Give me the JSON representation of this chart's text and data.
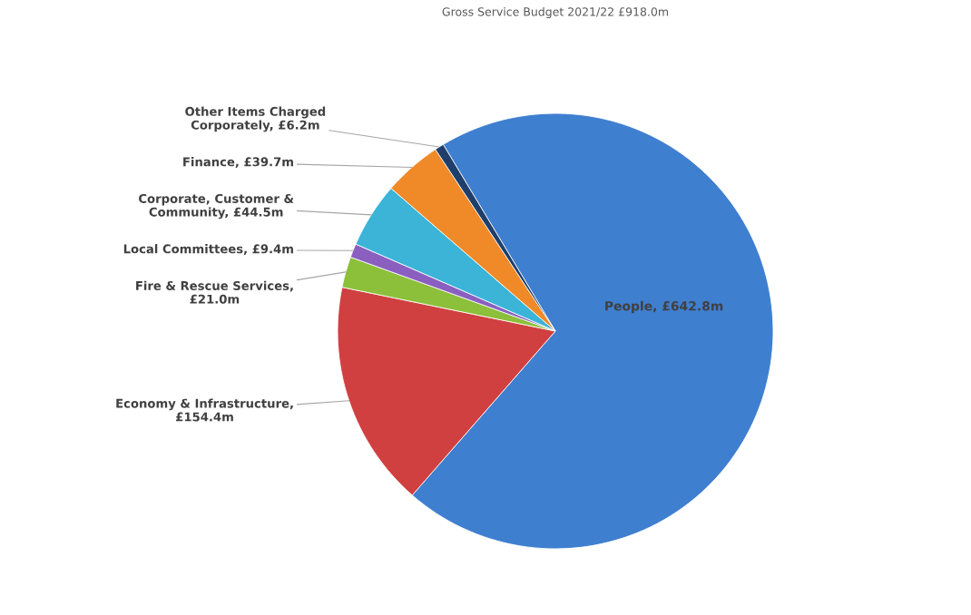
{
  "chart_data": {
    "type": "pie",
    "title": "Gross Service Budget 2021/22 £918.0m",
    "categories": [
      "People",
      "Economy & Infrastructure",
      "Fire & Rescue Services",
      "Local Committees",
      "Corporate, Customer & Community",
      "Finance",
      "Other Items Charged Corporately"
    ],
    "values": [
      642.8,
      154.4,
      21.0,
      9.4,
      44.5,
      39.7,
      6.2
    ],
    "colors": [
      "#3f7fd0",
      "#d04040",
      "#8cbf3a",
      "#8a5fc0",
      "#3bb4d8",
      "#f08a28",
      "#1f3f6a"
    ],
    "value_labels": [
      ", £642.8m",
      ", £154.4m",
      ", £21.0m",
      ", £9.4m",
      ", £44.5m",
      ", £39.7m",
      ", £6.2m"
    ],
    "legend": false
  }
}
